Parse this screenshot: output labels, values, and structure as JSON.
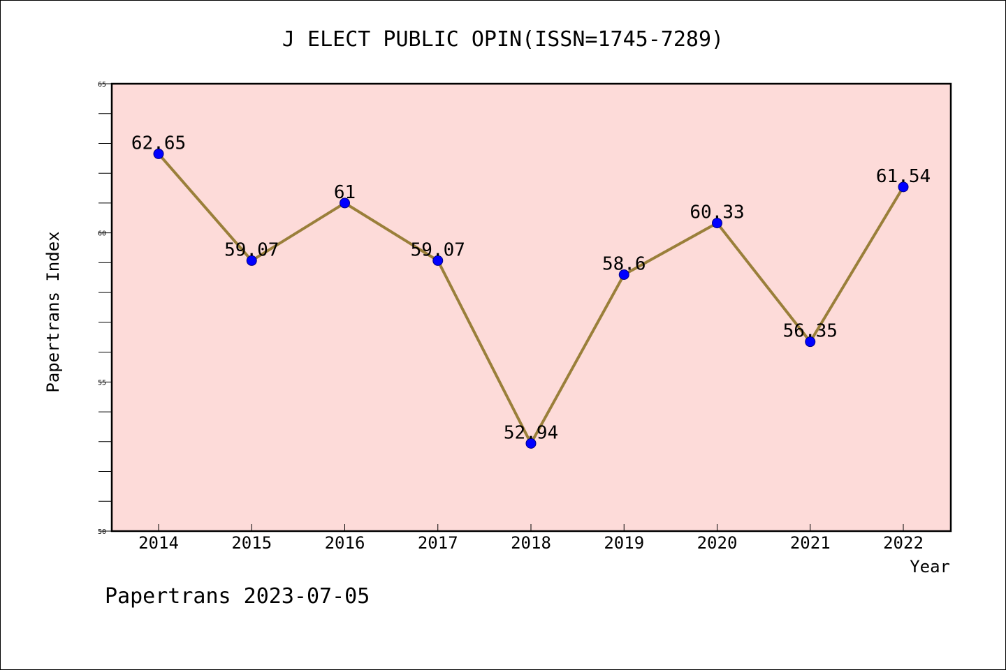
{
  "chart_data": {
    "type": "line",
    "title": "J ELECT PUBLIC OPIN(ISSN=1745-7289)",
    "xlabel": "Year",
    "ylabel": "Papertrans Index",
    "categories": [
      "2014",
      "2015",
      "2016",
      "2017",
      "2018",
      "2019",
      "2020",
      "2021",
      "2022"
    ],
    "values": [
      62.65,
      59.07,
      61,
      59.07,
      52.94,
      58.6,
      60.33,
      56.35,
      61.54
    ],
    "data_labels": [
      "62.65",
      "59.07",
      "61",
      "59.07",
      "52.94",
      "58.6",
      "60.33",
      "56.35",
      "61.54"
    ],
    "ylim": [
      50,
      65
    ],
    "yticks": [
      "50",
      "55",
      "60",
      "65"
    ],
    "grid": false,
    "colors": {
      "plot_background": "#fddbd9",
      "line": "#9a7f3a",
      "marker": "#0000ff",
      "marker_edge": "#000080"
    }
  },
  "footer": "Papertrans 2023-07-05"
}
